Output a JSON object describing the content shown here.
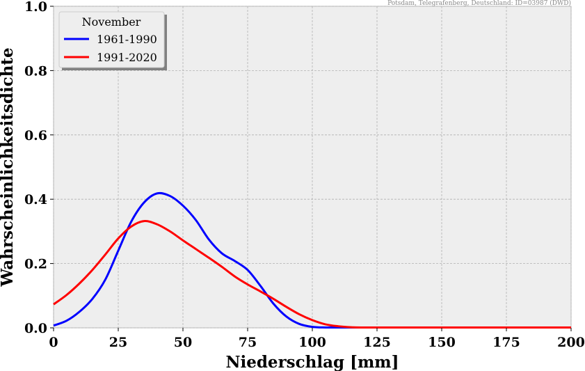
{
  "chart_data": {
    "type": "line",
    "source_note": "Potsdam, Telegrafenberg, Deutschland: ID=03987 (DWD)",
    "xlabel": "Niederschlag [mm]",
    "ylabel": "Wahrscheinlichkeitsdichte",
    "xlim": [
      0,
      200
    ],
    "ylim": [
      0,
      1.0
    ],
    "xticks": [
      "0",
      "25",
      "50",
      "75",
      "100",
      "125",
      "150",
      "175",
      "200"
    ],
    "xtick_values": [
      0,
      25,
      50,
      75,
      100,
      125,
      150,
      175,
      200
    ],
    "yticks": [
      "0.0",
      "0.2",
      "0.4",
      "0.6",
      "0.8",
      "1.0"
    ],
    "ytick_values": [
      0,
      0.2,
      0.4,
      0.6,
      0.8,
      1.0
    ],
    "grid": true,
    "legend": {
      "title": "November",
      "placement": "top-left"
    },
    "x": [
      0,
      5,
      10,
      15,
      20,
      25,
      30,
      35,
      40,
      45,
      50,
      55,
      60,
      65,
      70,
      75,
      80,
      85,
      90,
      95,
      100,
      105,
      110,
      115,
      120,
      130,
      140,
      160,
      180,
      200
    ],
    "series": [
      {
        "name": "1961-1990",
        "color": "#0000ff",
        "values": [
          0.007,
          0.022,
          0.05,
          0.09,
          0.15,
          0.24,
          0.33,
          0.39,
          0.418,
          0.41,
          0.38,
          0.335,
          0.275,
          0.232,
          0.208,
          0.18,
          0.13,
          0.075,
          0.035,
          0.012,
          0.003,
          0.001,
          0,
          0,
          0,
          0,
          0,
          0,
          0,
          0
        ]
      },
      {
        "name": "1991-2020",
        "color": "#ff0000",
        "values": [
          0.073,
          0.102,
          0.138,
          0.18,
          0.228,
          0.278,
          0.315,
          0.332,
          0.322,
          0.3,
          0.272,
          0.245,
          0.218,
          0.19,
          0.16,
          0.135,
          0.113,
          0.09,
          0.065,
          0.042,
          0.024,
          0.011,
          0.005,
          0.002,
          0.0005,
          0,
          0,
          0,
          0,
          0
        ]
      }
    ]
  }
}
